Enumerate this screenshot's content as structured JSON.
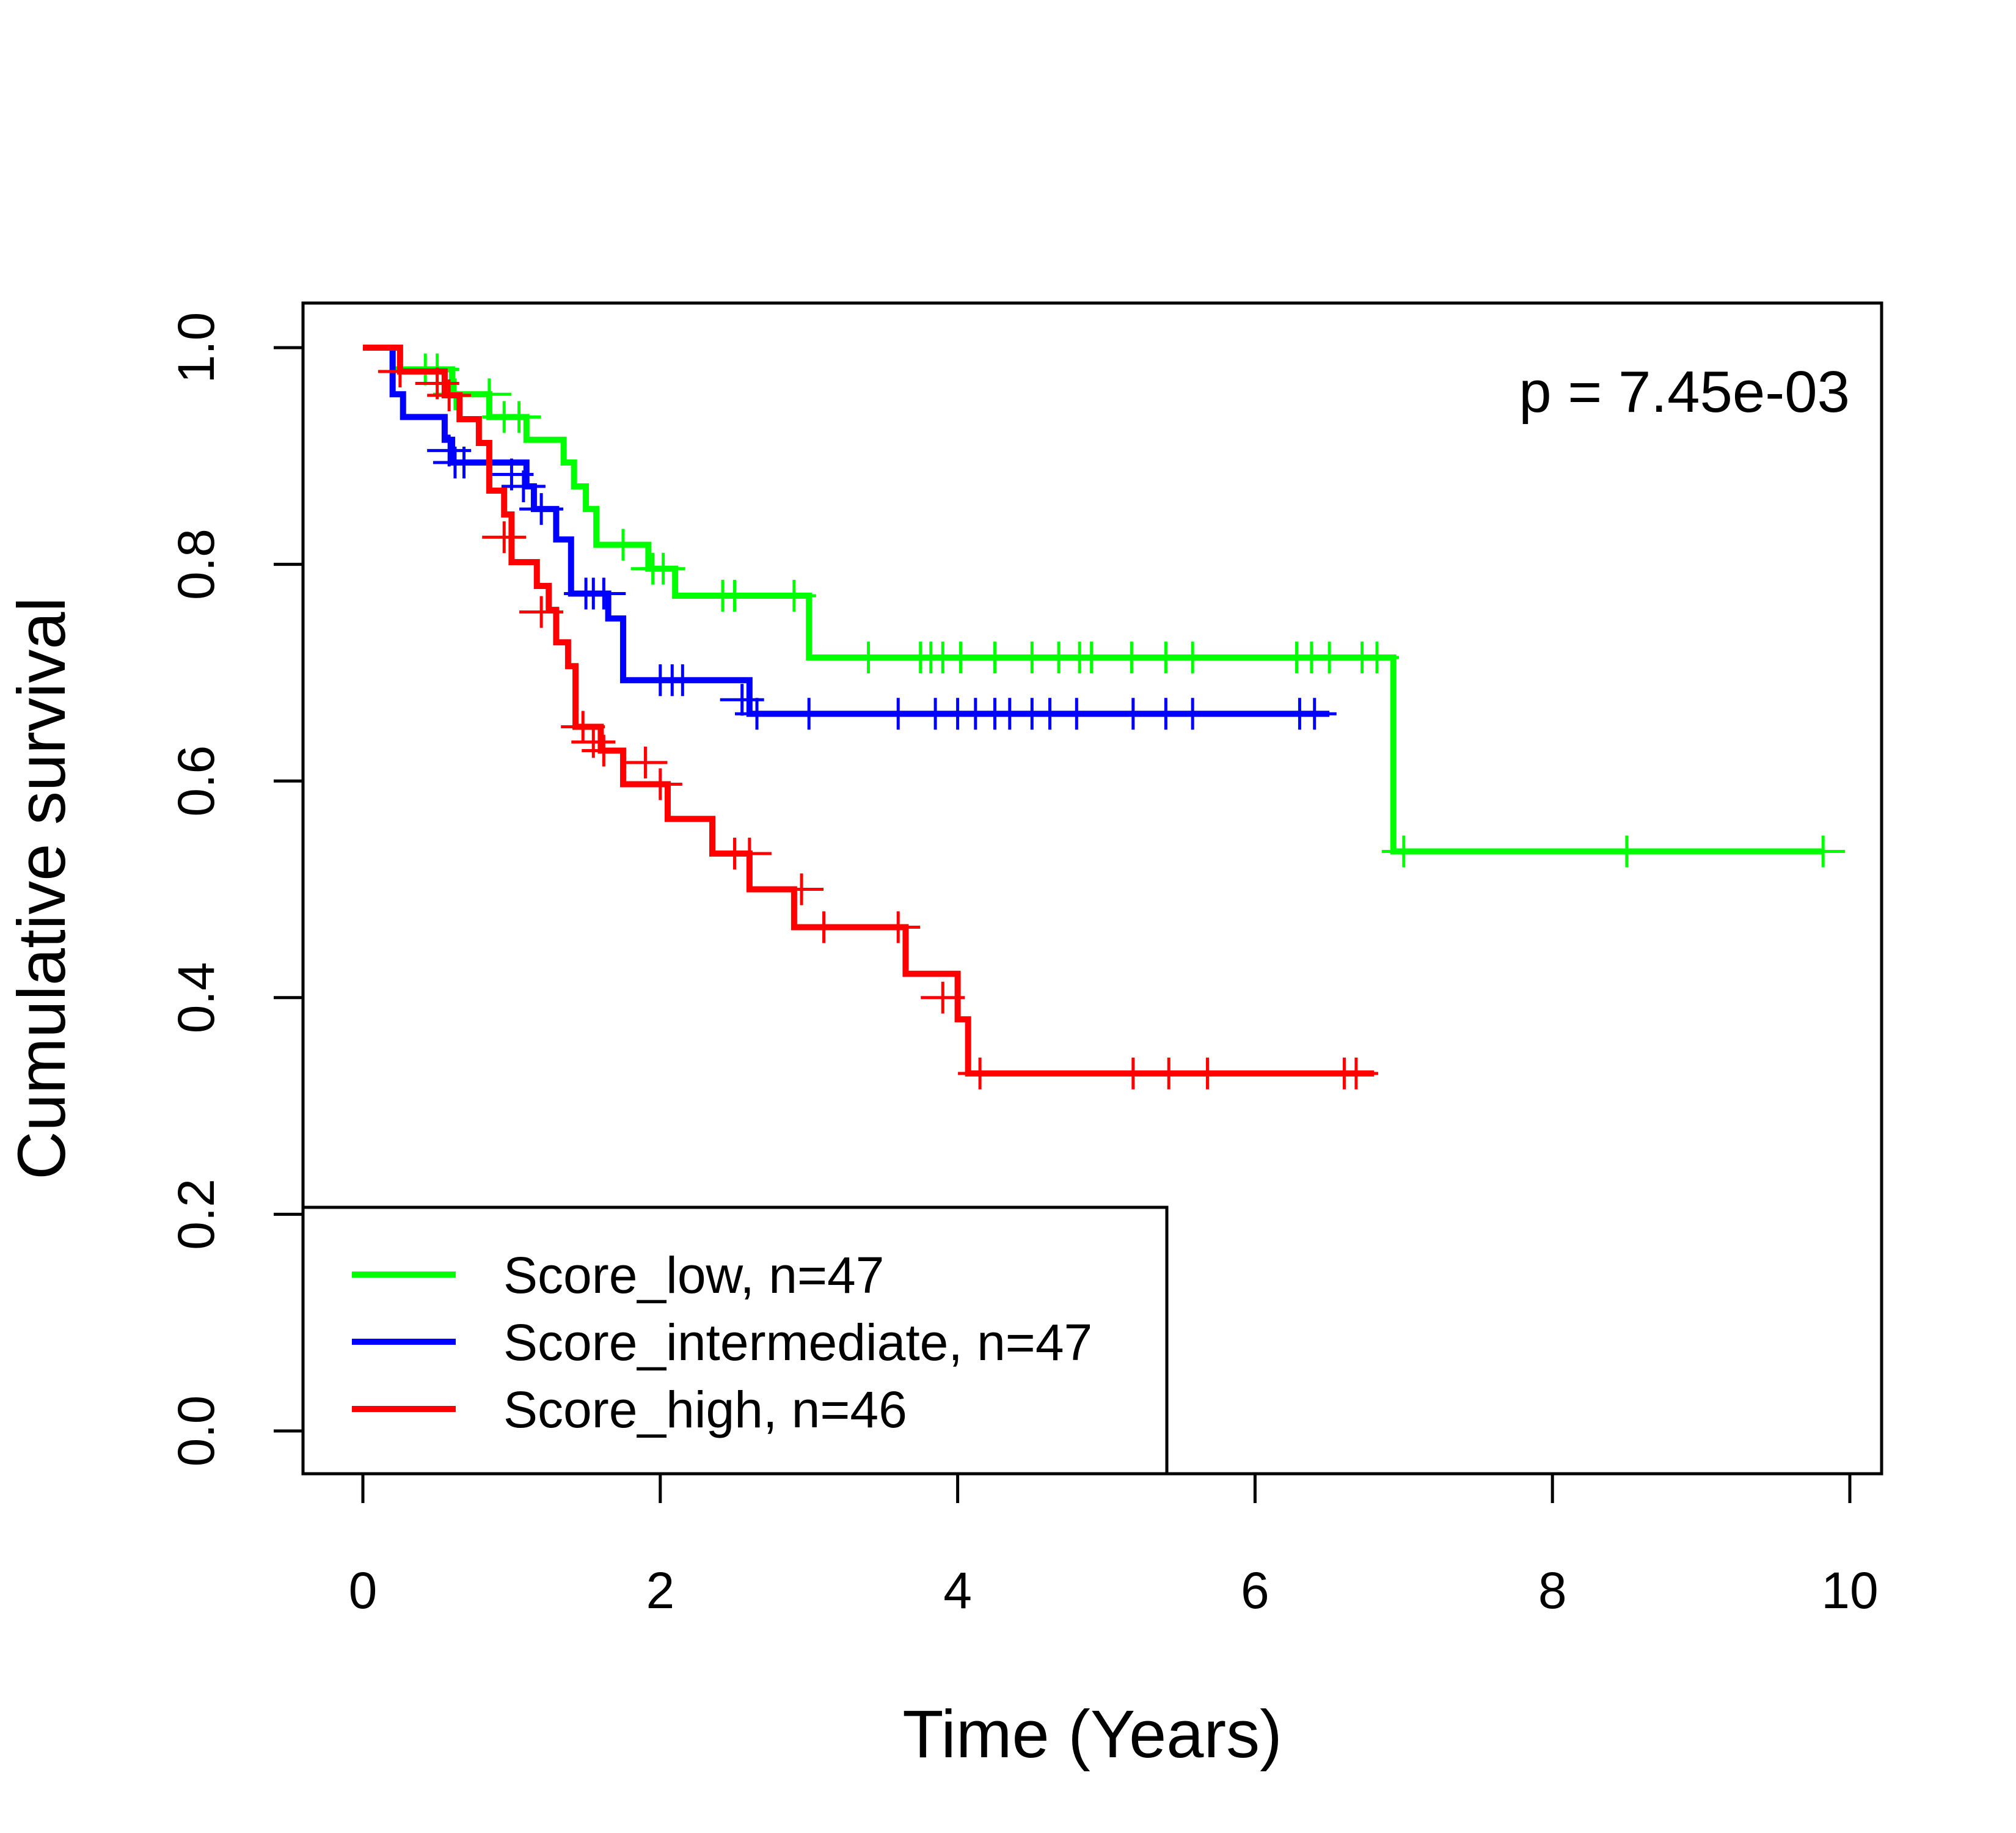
{
  "chart_data": {
    "type": "line",
    "subtype": "kaplan-meier",
    "title": "",
    "xlabel": "Time (Years)",
    "ylabel": "Cumulative survival",
    "xlim": [
      0,
      10
    ],
    "ylim": [
      0,
      1
    ],
    "xticks": [
      "0",
      "2",
      "4",
      "6",
      "8",
      "10"
    ],
    "yticks": [
      "0.0",
      "0.2",
      "0.4",
      "0.6",
      "0.8",
      "1.0"
    ],
    "grid": false,
    "legend_position": "bottom-left",
    "annotation": "p = 7.45e-03",
    "series": [
      {
        "name": "Score_low, n=47",
        "color": "#00FF00",
        "steps": [
          [
            0.15,
            1.0
          ],
          [
            0.2,
            0.98
          ],
          [
            0.6,
            0.957
          ],
          [
            0.85,
            0.936
          ],
          [
            1.1,
            0.915
          ],
          [
            1.35,
            0.894
          ],
          [
            1.42,
            0.872
          ],
          [
            1.5,
            0.851
          ],
          [
            1.57,
            0.818
          ],
          [
            1.92,
            0.796
          ],
          [
            2.1,
            0.771
          ],
          [
            3.0,
            0.714
          ],
          [
            6.9,
            0.714
          ],
          [
            6.93,
            0.535
          ],
          [
            9.82,
            0.535
          ]
        ],
        "censors": [
          [
            0.42,
            0.98
          ],
          [
            0.5,
            0.98
          ],
          [
            0.62,
            0.957
          ],
          [
            0.85,
            0.957
          ],
          [
            0.95,
            0.936
          ],
          [
            1.05,
            0.936
          ],
          [
            1.75,
            0.818
          ],
          [
            1.95,
            0.796
          ],
          [
            2.02,
            0.796
          ],
          [
            2.42,
            0.771
          ],
          [
            2.5,
            0.771
          ],
          [
            2.9,
            0.771
          ],
          [
            3.4,
            0.714
          ],
          [
            3.75,
            0.714
          ],
          [
            3.82,
            0.714
          ],
          [
            3.9,
            0.714
          ],
          [
            4.02,
            0.714
          ],
          [
            4.25,
            0.714
          ],
          [
            4.5,
            0.714
          ],
          [
            4.68,
            0.714
          ],
          [
            4.82,
            0.714
          ],
          [
            4.9,
            0.714
          ],
          [
            5.17,
            0.714
          ],
          [
            5.4,
            0.714
          ],
          [
            5.58,
            0.714
          ],
          [
            6.28,
            0.714
          ],
          [
            6.38,
            0.714
          ],
          [
            6.5,
            0.714
          ],
          [
            6.72,
            0.714
          ],
          [
            6.82,
            0.714
          ],
          [
            7.0,
            0.535
          ],
          [
            8.5,
            0.535
          ],
          [
            9.82,
            0.535
          ]
        ]
      },
      {
        "name": "Score_intermediate, n=47",
        "color": "#0000FF",
        "steps": [
          [
            0.15,
            1.0
          ],
          [
            0.2,
            0.957
          ],
          [
            0.27,
            0.936
          ],
          [
            0.55,
            0.915
          ],
          [
            0.6,
            0.894
          ],
          [
            1.1,
            0.872
          ],
          [
            1.15,
            0.851
          ],
          [
            1.3,
            0.823
          ],
          [
            1.4,
            0.773
          ],
          [
            1.65,
            0.75
          ],
          [
            1.75,
            0.693
          ],
          [
            2.6,
            0.662
          ],
          [
            6.5,
            0.662
          ]
        ],
        "censors": [
          [
            0.58,
            0.905
          ],
          [
            0.62,
            0.894
          ],
          [
            0.68,
            0.894
          ],
          [
            1.0,
            0.883
          ],
          [
            1.08,
            0.872
          ],
          [
            1.2,
            0.851
          ],
          [
            1.5,
            0.773
          ],
          [
            1.55,
            0.773
          ],
          [
            1.62,
            0.773
          ],
          [
            2.0,
            0.693
          ],
          [
            2.08,
            0.693
          ],
          [
            2.15,
            0.693
          ],
          [
            2.55,
            0.675
          ],
          [
            2.65,
            0.662
          ],
          [
            3.0,
            0.662
          ],
          [
            3.6,
            0.662
          ],
          [
            3.85,
            0.662
          ],
          [
            4.0,
            0.662
          ],
          [
            4.12,
            0.662
          ],
          [
            4.25,
            0.662
          ],
          [
            4.35,
            0.662
          ],
          [
            4.5,
            0.662
          ],
          [
            4.62,
            0.662
          ],
          [
            4.8,
            0.662
          ],
          [
            5.18,
            0.662
          ],
          [
            5.4,
            0.662
          ],
          [
            5.58,
            0.662
          ],
          [
            6.3,
            0.662
          ],
          [
            6.4,
            0.662
          ]
        ]
      },
      {
        "name": "Score_high, n=46",
        "color": "#FF0000",
        "steps": [
          [
            0.0,
            1.0
          ],
          [
            0.25,
            0.978
          ],
          [
            0.55,
            0.956
          ],
          [
            0.65,
            0.934
          ],
          [
            0.78,
            0.912
          ],
          [
            0.85,
            0.868
          ],
          [
            0.95,
            0.846
          ],
          [
            1.0,
            0.802
          ],
          [
            1.17,
            0.78
          ],
          [
            1.25,
            0.758
          ],
          [
            1.3,
            0.728
          ],
          [
            1.38,
            0.706
          ],
          [
            1.43,
            0.65
          ],
          [
            1.6,
            0.628
          ],
          [
            1.75,
            0.597
          ],
          [
            2.05,
            0.565
          ],
          [
            2.35,
            0.533
          ],
          [
            2.6,
            0.5
          ],
          [
            2.9,
            0.465
          ],
          [
            3.65,
            0.422
          ],
          [
            4.0,
            0.38
          ],
          [
            4.07,
            0.33
          ],
          [
            6.8,
            0.33
          ]
        ],
        "censors": [
          [
            0.25,
            0.978
          ],
          [
            0.5,
            0.967
          ],
          [
            0.58,
            0.956
          ],
          [
            0.95,
            0.825
          ],
          [
            1.2,
            0.756
          ],
          [
            1.48,
            0.65
          ],
          [
            1.55,
            0.636
          ],
          [
            1.62,
            0.628
          ],
          [
            1.9,
            0.617
          ],
          [
            2.0,
            0.597
          ],
          [
            2.5,
            0.533
          ],
          [
            2.6,
            0.533
          ],
          [
            2.95,
            0.5
          ],
          [
            3.1,
            0.465
          ],
          [
            3.6,
            0.465
          ],
          [
            3.9,
            0.4
          ],
          [
            4.15,
            0.33
          ],
          [
            5.18,
            0.33
          ],
          [
            5.42,
            0.33
          ],
          [
            5.68,
            0.33
          ],
          [
            6.6,
            0.33
          ],
          [
            6.68,
            0.33
          ]
        ]
      }
    ]
  }
}
